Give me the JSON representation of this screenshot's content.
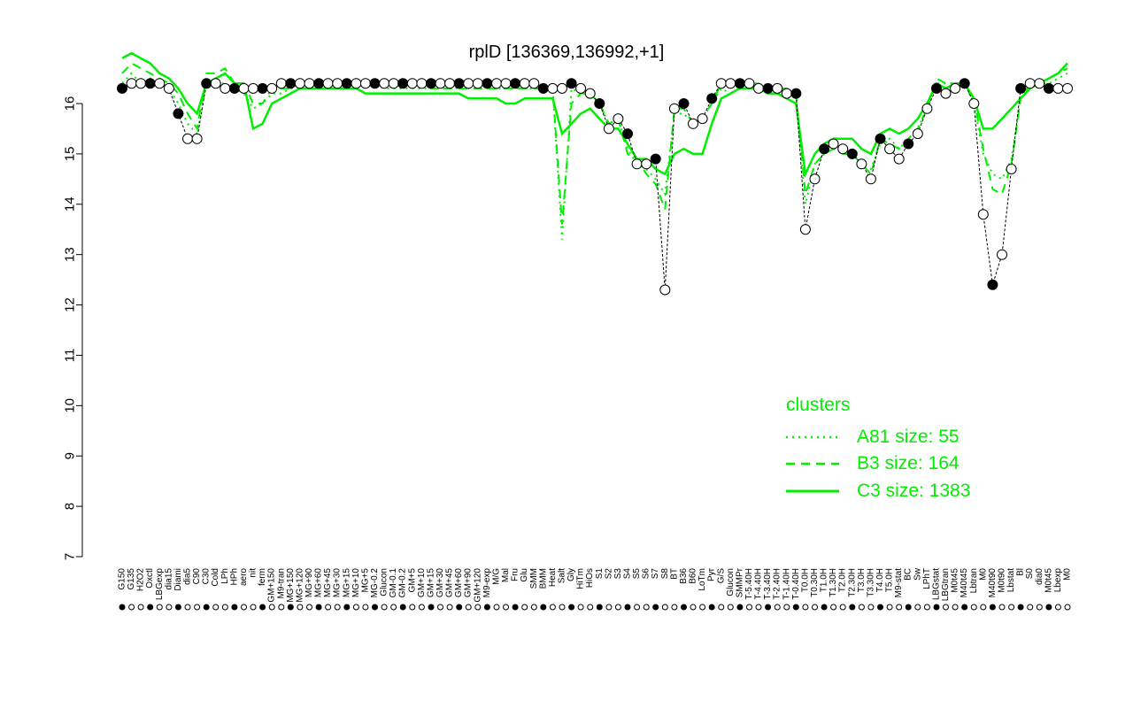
{
  "chart_data": {
    "type": "line",
    "title": "rplD [136369,136992,+1]",
    "xlabel": "",
    "ylabel": "",
    "ylim": [
      7,
      16.8
    ],
    "yticks": [
      7,
      8,
      9,
      10,
      11,
      12,
      13,
      14,
      15,
      16
    ],
    "x_labels_top": [
      "G150",
      "G135",
      "H2O2",
      "Oxctl",
      "LBGexp",
      "dia15",
      "Diami",
      "dia5",
      "C90",
      "C30",
      "Cold",
      "LPh",
      "HPh",
      "aero",
      "nit",
      "ferm",
      "GM+150",
      "M9-tran",
      "MG+150",
      "MG+120",
      "MG+90",
      "MG+60",
      "MG+45",
      "MG+30",
      "MG+15",
      "MG+10",
      "MG+5",
      "MG-0.2",
      "Glucon",
      "GM-0.1",
      "GM-0.2",
      "GM+5",
      "GM+10",
      "GM+15",
      "GM+30",
      "GM+45",
      "GM+60",
      "GM+90",
      "GM+120",
      "M9-exp",
      "M/G",
      "Mal",
      "Fru",
      "Glu",
      "SMM",
      "BMM",
      "Heat",
      "Salt",
      "Gly",
      "HiTm",
      "HiOs",
      "S1",
      "S2",
      "S3",
      "S4",
      "S5",
      "S6",
      "S7",
      "S8",
      "BT",
      "B36",
      "B60",
      "LoTm",
      "Pyr",
      "G/S",
      "Glucon",
      "SMMPr",
      "T-5.40H",
      "T-4.40H",
      "T-3.40H",
      "T-2.40H",
      "T-1.40H",
      "T-0.40H",
      "T0.0H",
      "T0.30H",
      "T1.0H",
      "T1.30H",
      "T2.0H",
      "T2.30H",
      "T3.0H",
      "T3.30H",
      "T4.0H",
      "T5.0H",
      "M9-stat",
      "BC",
      "Sw",
      "LPhT",
      "LBGstat",
      "LBGtran",
      "M0t45",
      "M40t45",
      "Lbtran",
      "M0",
      "M40t90",
      "M0t90",
      "Lbstat",
      "Bl",
      "S0",
      "dia0",
      "M0t45",
      "Lbexp",
      "M0"
    ],
    "series": [
      {
        "name": "",
        "kind": "expression",
        "values": [
          16.3,
          16.4,
          16.4,
          16.4,
          16.4,
          16.3,
          15.8,
          15.3,
          15.3,
          16.4,
          16.4,
          16.3,
          16.3,
          16.3,
          16.3,
          16.3,
          16.3,
          16.4,
          16.4,
          16.4,
          16.4,
          16.4,
          16.4,
          16.4,
          16.4,
          16.4,
          16.4,
          16.4,
          16.4,
          16.4,
          16.4,
          16.4,
          16.4,
          16.4,
          16.4,
          16.4,
          16.4,
          16.4,
          16.4,
          16.4,
          16.4,
          16.4,
          16.4,
          16.4,
          16.4,
          16.3,
          16.3,
          16.3,
          16.4,
          16.3,
          16.2,
          16.0,
          15.5,
          15.7,
          15.4,
          14.8,
          14.8,
          14.9,
          12.3,
          15.9,
          16.0,
          15.6,
          15.7,
          16.1,
          16.4,
          16.4,
          16.4,
          16.4,
          16.3,
          16.3,
          16.3,
          16.2,
          16.2,
          13.5,
          14.5,
          15.1,
          15.2,
          15.1,
          15.0,
          14.8,
          14.5,
          15.3,
          15.1,
          14.9,
          15.2,
          15.4,
          15.9,
          16.3,
          16.2,
          16.3,
          16.4,
          16.0,
          13.8,
          12.4,
          13.0,
          14.7,
          16.3,
          16.4,
          16.4,
          16.3,
          16.3,
          16.3
        ]
      },
      {
        "name": "A81 size: 55",
        "style": "dotted",
        "values": [
          16.4,
          16.6,
          16.4,
          16.5,
          16.4,
          16.3,
          16.0,
          15.6,
          15.4,
          16.4,
          16.4,
          16.4,
          16.3,
          16.2,
          15.9,
          16.0,
          16.2,
          16.2,
          16.3,
          16.3,
          16.3,
          16.4,
          16.4,
          16.4,
          16.4,
          16.4,
          16.4,
          16.4,
          16.3,
          16.3,
          16.3,
          16.3,
          16.3,
          16.3,
          16.3,
          16.3,
          16.3,
          16.3,
          16.3,
          16.3,
          16.3,
          16.3,
          16.3,
          16.3,
          16.3,
          16.3,
          16.3,
          13.3,
          16.3,
          16.2,
          16.2,
          16.0,
          15.6,
          15.7,
          15.1,
          14.8,
          14.7,
          14.5,
          14.2,
          15.8,
          15.8,
          15.6,
          15.7,
          16.0,
          16.3,
          16.2,
          16.3,
          16.3,
          16.3,
          16.3,
          16.3,
          16.2,
          16.1,
          14.0,
          14.8,
          15.0,
          15.1,
          15.0,
          15.0,
          14.8,
          14.7,
          15.2,
          15.3,
          15.1,
          15.3,
          15.5,
          15.9,
          16.4,
          16.4,
          16.4,
          16.4,
          16.0,
          15.0,
          14.6,
          14.5,
          14.9,
          16.1,
          16.4,
          16.4,
          16.4,
          16.5,
          16.6
        ]
      },
      {
        "name": "B3 size: 164",
        "style": "dashed",
        "values": [
          16.6,
          16.8,
          16.7,
          16.6,
          16.5,
          16.4,
          16.2,
          15.8,
          15.5,
          16.6,
          16.6,
          16.7,
          16.4,
          16.4,
          16.0,
          16.0,
          16.3,
          16.3,
          16.3,
          16.4,
          16.4,
          16.4,
          16.4,
          16.4,
          16.4,
          16.4,
          16.4,
          16.4,
          16.4,
          16.4,
          16.4,
          16.4,
          16.4,
          16.3,
          16.3,
          16.3,
          16.3,
          16.3,
          16.3,
          16.3,
          16.3,
          16.3,
          16.3,
          16.3,
          16.3,
          16.3,
          16.3,
          13.6,
          16.0,
          16.2,
          16.2,
          16.0,
          15.6,
          15.7,
          15.0,
          14.9,
          14.6,
          14.4,
          13.9,
          15.9,
          15.9,
          15.6,
          15.7,
          16.0,
          16.4,
          16.4,
          16.4,
          16.4,
          16.4,
          16.3,
          16.3,
          16.3,
          16.2,
          14.2,
          14.8,
          15.0,
          15.1,
          15.0,
          15.0,
          14.8,
          14.6,
          15.3,
          15.2,
          15.1,
          15.3,
          15.5,
          15.9,
          16.5,
          16.4,
          16.4,
          16.4,
          16.1,
          15.1,
          14.3,
          14.2,
          14.8,
          16.1,
          16.4,
          16.4,
          16.5,
          16.6,
          16.7
        ]
      },
      {
        "name": "C3 size: 1383",
        "style": "solid",
        "values": [
          16.9,
          17.0,
          16.9,
          16.8,
          16.6,
          16.5,
          16.3,
          16.0,
          15.8,
          16.4,
          16.5,
          16.6,
          16.4,
          16.4,
          15.5,
          15.6,
          16.0,
          16.1,
          16.2,
          16.3,
          16.3,
          16.3,
          16.3,
          16.3,
          16.3,
          16.3,
          16.2,
          16.2,
          16.2,
          16.2,
          16.2,
          16.2,
          16.2,
          16.2,
          16.2,
          16.2,
          16.2,
          16.1,
          16.1,
          16.1,
          16.1,
          16.0,
          16.0,
          16.1,
          16.1,
          16.1,
          16.1,
          15.4,
          15.6,
          15.8,
          15.9,
          15.7,
          15.5,
          15.5,
          15.2,
          14.9,
          14.9,
          14.7,
          14.6,
          15.0,
          15.1,
          15.0,
          15.0,
          15.6,
          16.1,
          16.2,
          16.3,
          16.3,
          16.3,
          16.2,
          16.2,
          16.1,
          16.0,
          14.6,
          15.0,
          15.2,
          15.3,
          15.3,
          15.3,
          15.1,
          15.0,
          15.4,
          15.5,
          15.4,
          15.5,
          15.7,
          16.0,
          16.4,
          16.3,
          16.4,
          16.4,
          16.1,
          15.5,
          15.5,
          15.7,
          15.9,
          16.1,
          16.3,
          16.4,
          16.5,
          16.6,
          16.8
        ]
      }
    ],
    "legend": {
      "title": "clusters",
      "position": "bottom-right",
      "entries": [
        "A81 size: 55",
        "B3 size: 164",
        "C3 size: 1383"
      ]
    },
    "grid": false,
    "colors": {
      "cluster_line": "#00ee00",
      "point_fill_dark": "#000000",
      "point_fill_light": "#ffffff"
    }
  }
}
